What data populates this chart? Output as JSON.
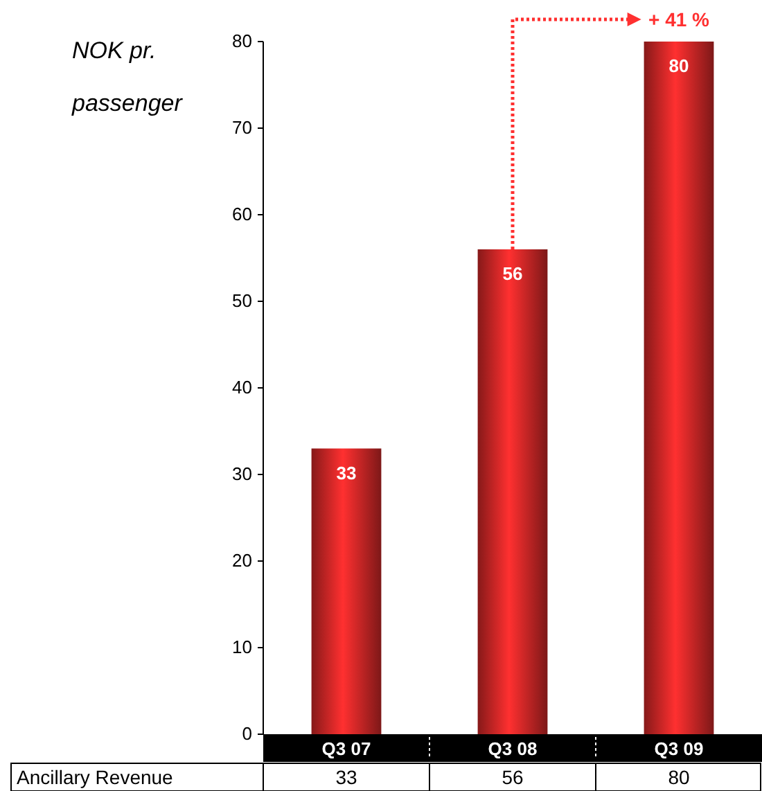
{
  "chart_data": {
    "type": "bar",
    "ylabel": "NOK pr. passenger",
    "categories": [
      "Q3 07",
      "Q3 08",
      "Q3 09"
    ],
    "series": [
      {
        "name": "Ancillary Revenue",
        "color": "#ff3030",
        "values": [
          33,
          56,
          80
        ],
        "value_labels": [
          "33",
          "56",
          "80"
        ]
      }
    ],
    "ylim": [
      0,
      80
    ],
    "yticks": [
      0,
      10,
      20,
      30,
      40,
      50,
      60,
      70,
      80
    ],
    "data_labels": true,
    "annotations": [
      {
        "text": "+ 41 %",
        "x": "Q3 09",
        "y": 80
      },
      "33",
      "56",
      "80"
    ]
  }
}
